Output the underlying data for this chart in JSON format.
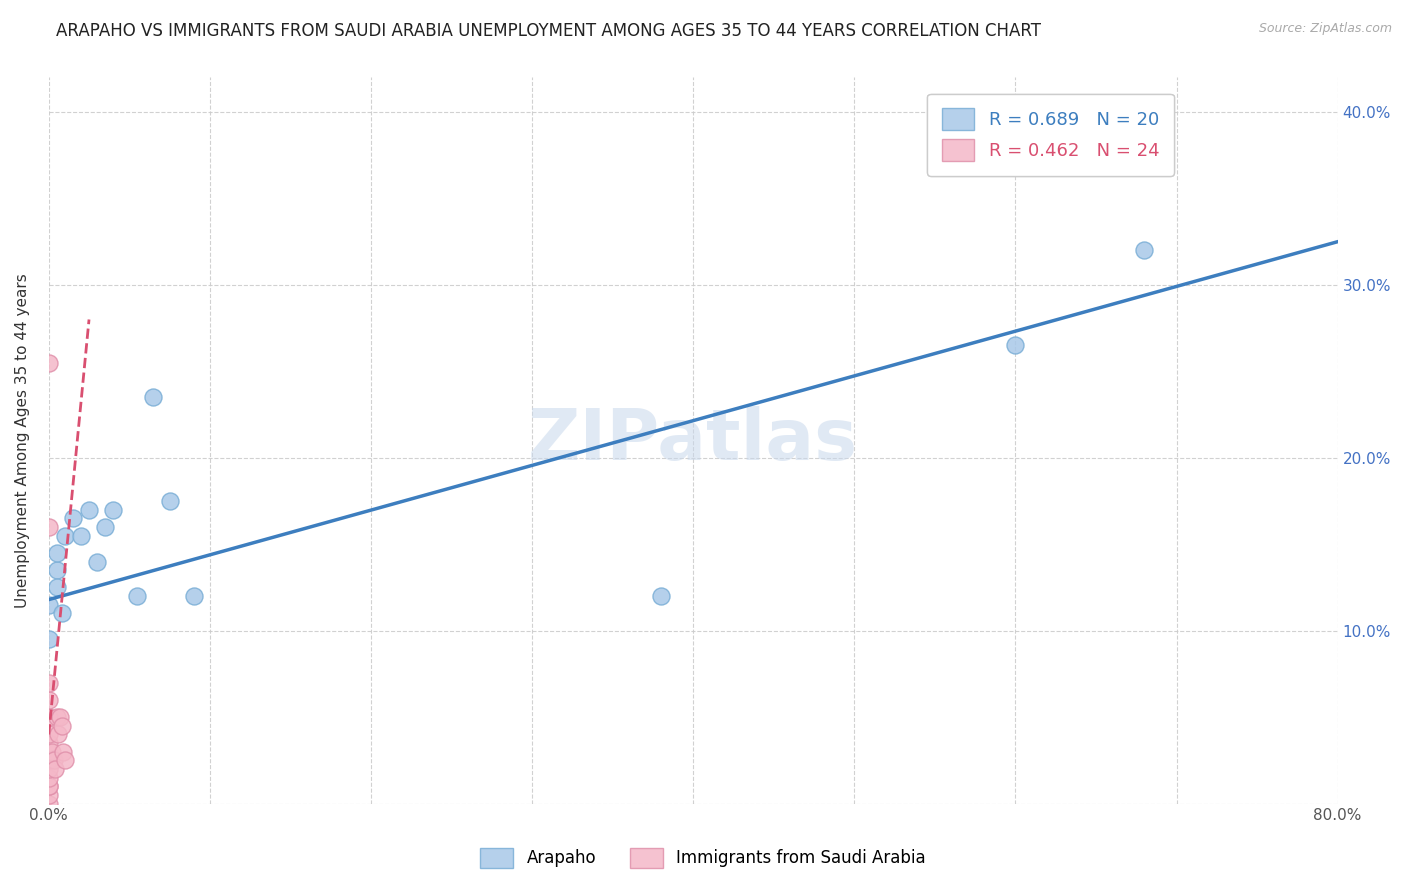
{
  "title": "ARAPAHO VS IMMIGRANTS FROM SAUDI ARABIA UNEMPLOYMENT AMONG AGES 35 TO 44 YEARS CORRELATION CHART",
  "source_text": "Source: ZipAtlas.com",
  "ylabel": "Unemployment Among Ages 35 to 44 years",
  "xlim": [
    0.0,
    0.8
  ],
  "ylim": [
    0.0,
    0.42
  ],
  "xticks": [
    0.0,
    0.1,
    0.2,
    0.3,
    0.4,
    0.5,
    0.6,
    0.7,
    0.8
  ],
  "yticks": [
    0.0,
    0.1,
    0.2,
    0.3,
    0.4
  ],
  "xtick_labels": [
    "0.0%",
    "",
    "",
    "",
    "",
    "",
    "",
    "",
    "80.0%"
  ],
  "ytick_labels_right": [
    "",
    "10.0%",
    "20.0%",
    "30.0%",
    "40.0%"
  ],
  "legend_blue_label": "R = 0.689   N = 20",
  "legend_pink_label": "R = 0.462   N = 24",
  "legend_bottom_blue": "Arapaho",
  "legend_bottom_pink": "Immigrants from Saudi Arabia",
  "blue_color": "#a8c8e8",
  "pink_color": "#f4b8c8",
  "blue_scatter_edge": "#7aaed6",
  "pink_scatter_edge": "#e090aa",
  "blue_line_color": "#3d7ebf",
  "pink_line_color": "#d94f70",
  "watermark": "ZIPatlas",
  "blue_scatter_x": [
    0.0,
    0.0,
    0.005,
    0.005,
    0.005,
    0.008,
    0.01,
    0.015,
    0.02,
    0.025,
    0.03,
    0.035,
    0.04,
    0.055,
    0.065,
    0.075,
    0.09,
    0.38,
    0.6,
    0.68
  ],
  "blue_scatter_y": [
    0.115,
    0.095,
    0.135,
    0.125,
    0.145,
    0.11,
    0.155,
    0.165,
    0.155,
    0.17,
    0.14,
    0.16,
    0.17,
    0.12,
    0.235,
    0.175,
    0.12,
    0.12,
    0.265,
    0.32
  ],
  "pink_scatter_x": [
    0.0,
    0.0,
    0.0,
    0.0,
    0.0,
    0.0,
    0.0,
    0.0,
    0.0,
    0.0,
    0.0,
    0.0,
    0.0,
    0.0,
    0.0,
    0.002,
    0.003,
    0.004,
    0.005,
    0.006,
    0.007,
    0.008,
    0.009,
    0.01
  ],
  "pink_scatter_y": [
    0.0,
    0.005,
    0.01,
    0.01,
    0.015,
    0.02,
    0.025,
    0.03,
    0.035,
    0.04,
    0.05,
    0.06,
    0.07,
    0.16,
    0.255,
    0.03,
    0.025,
    0.02,
    0.05,
    0.04,
    0.05,
    0.045,
    0.03,
    0.025
  ],
  "blue_line_x": [
    0.0,
    0.8
  ],
  "blue_line_y": [
    0.118,
    0.325
  ],
  "pink_line_x": [
    0.0,
    0.025
  ],
  "pink_line_y": [
    0.04,
    0.28
  ],
  "background_color": "#ffffff",
  "grid_color": "#cccccc",
  "title_fontsize": 12,
  "axis_label_fontsize": 11,
  "tick_fontsize": 11,
  "right_tick_color": "#4472c4"
}
